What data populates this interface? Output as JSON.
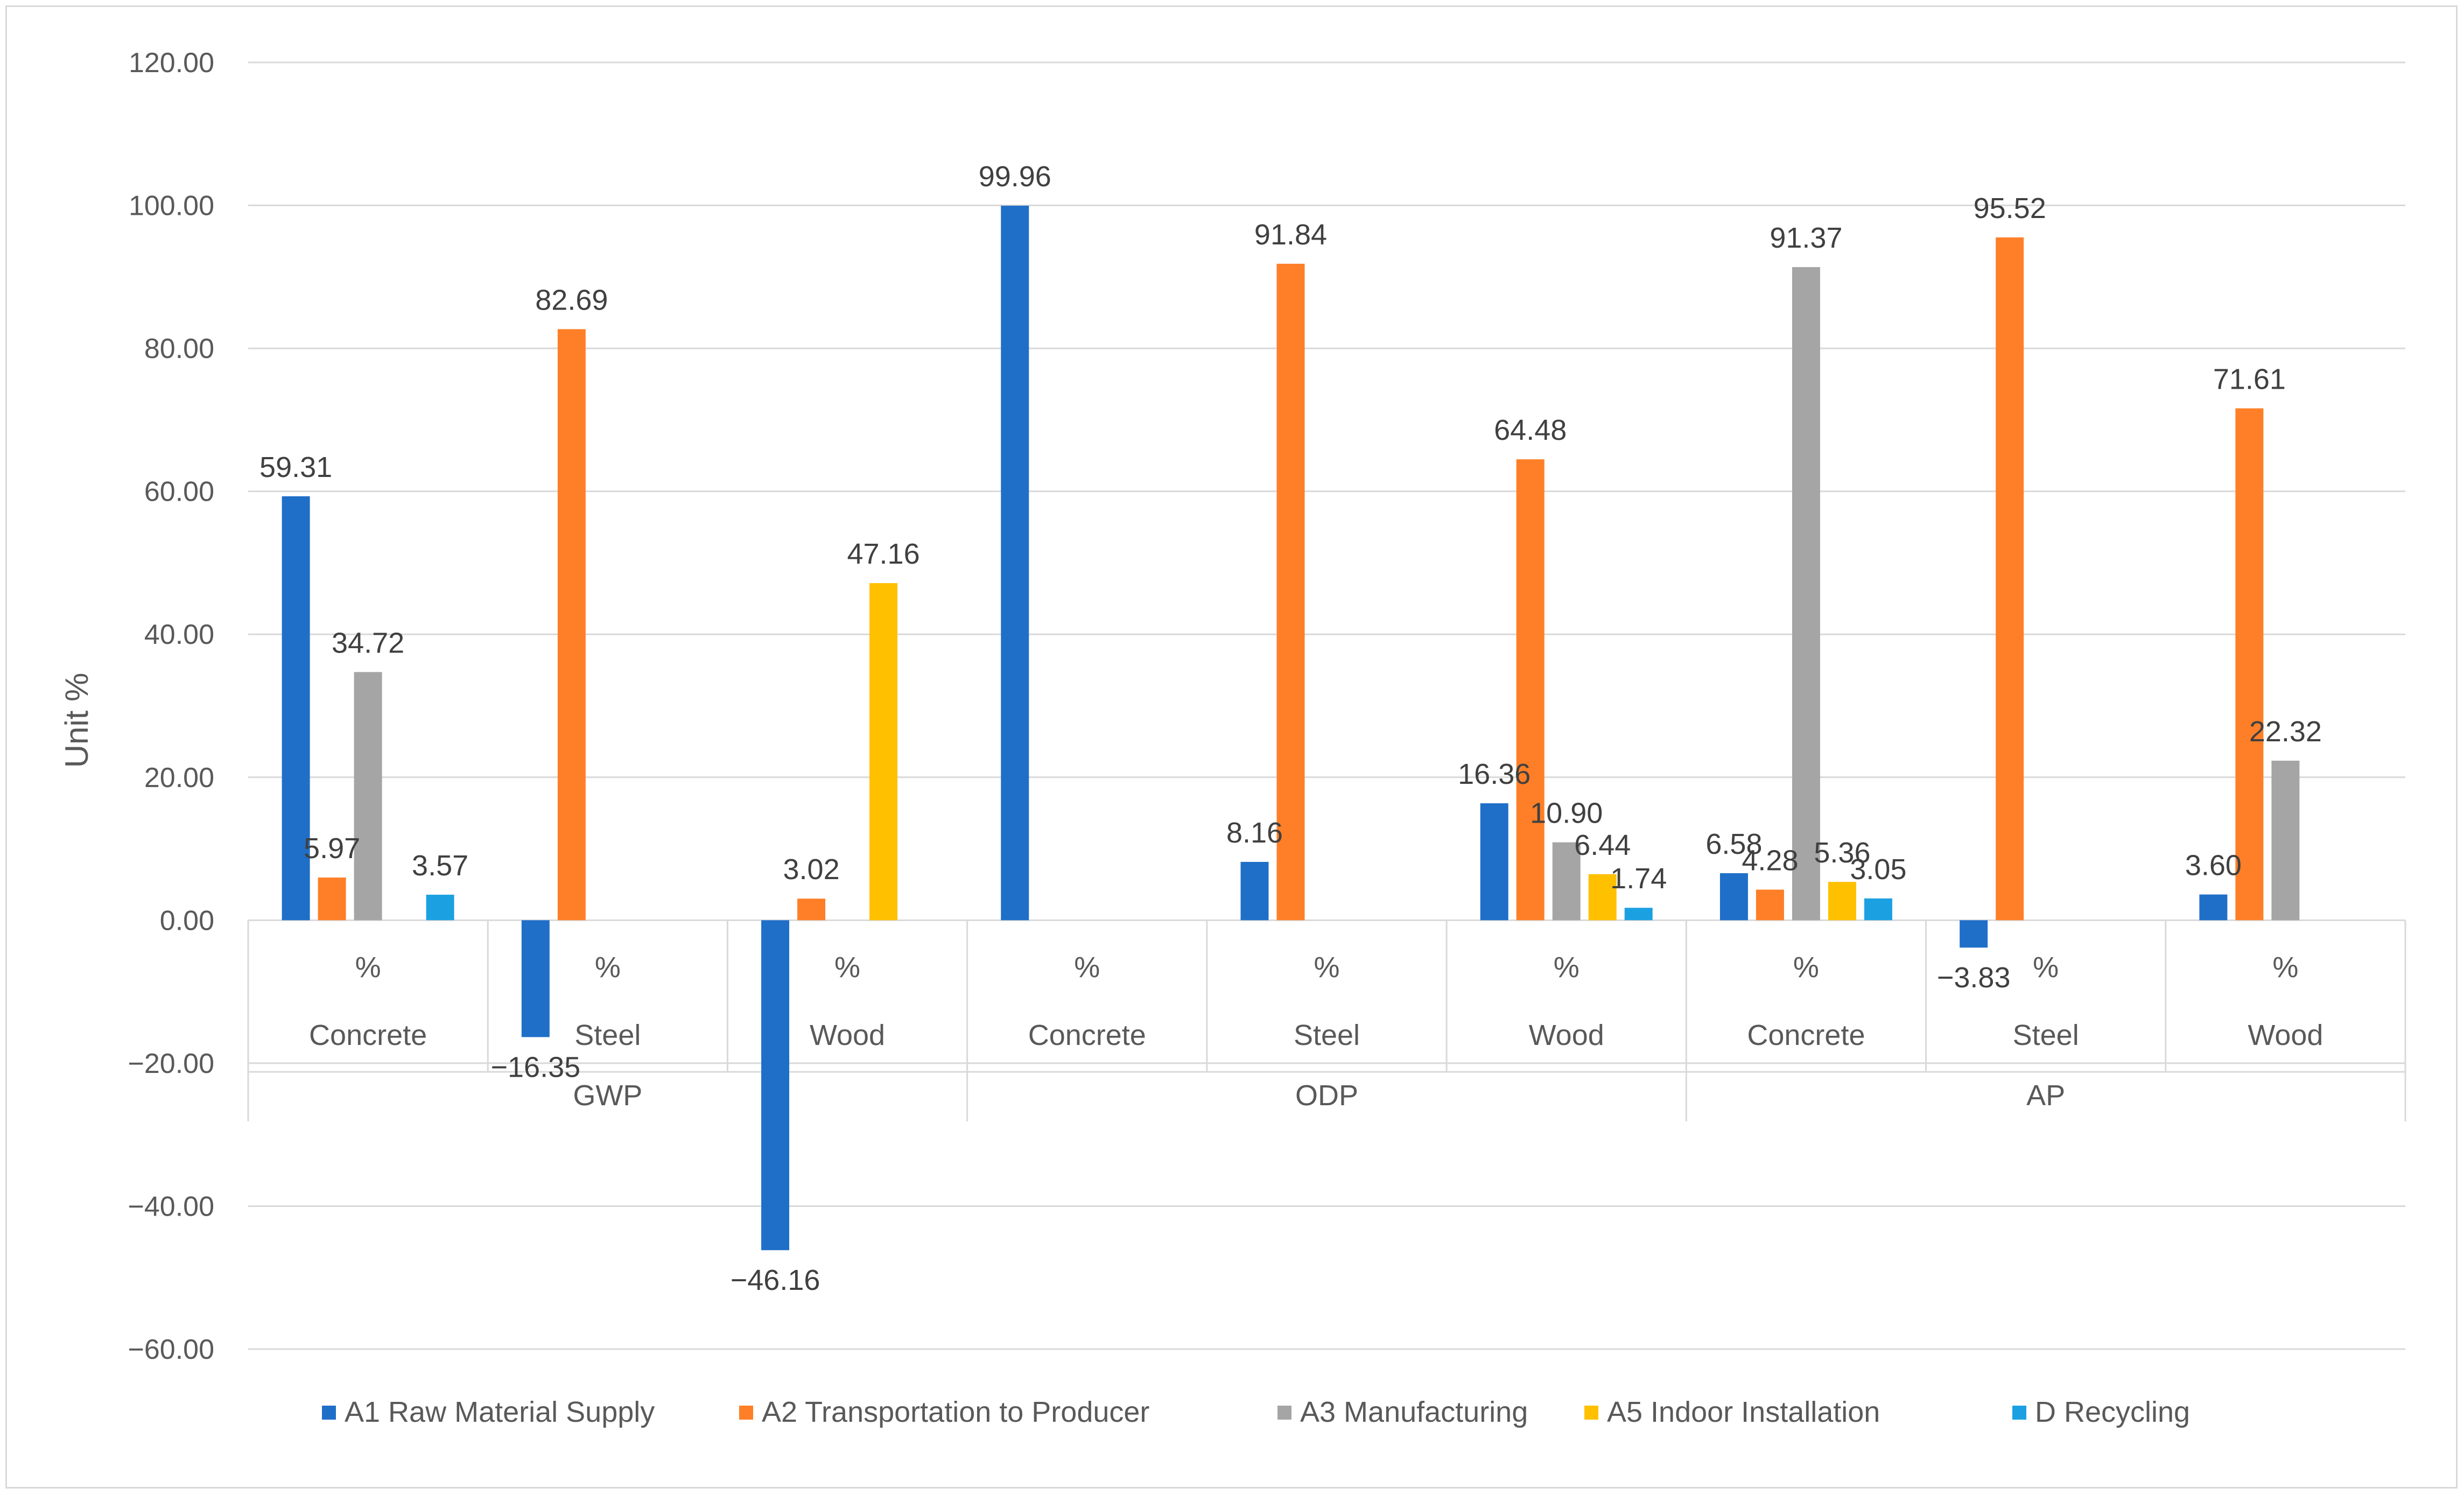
{
  "chart_data": {
    "type": "bar",
    "title": "",
    "xlabel": "",
    "ylabel": "Unit %",
    "ylim": [
      -60,
      120
    ],
    "y_ticks": [
      120,
      100,
      80,
      60,
      40,
      20,
      0,
      -20,
      -40,
      -60
    ],
    "y_tick_labels": [
      "120.00",
      "100.00",
      "80.00",
      "60.00",
      "40.00",
      "20.00",
      "0.00",
      "−20.00",
      "−40.00",
      "−60.00"
    ],
    "grid": true,
    "legend_position": "bottom",
    "group_levels": {
      "unit_labels": [
        "%",
        "%",
        "%",
        "%",
        "%",
        "%",
        "%",
        "%",
        "%"
      ],
      "materials": [
        "Concrete",
        "Steel",
        "Wood",
        "Concrete",
        "Steel",
        "Wood",
        "Concrete",
        "Steel",
        "Wood"
      ],
      "categories": [
        "GWP",
        "ODP",
        "AP"
      ]
    },
    "series": [
      {
        "name": "A1  Raw Material Supply",
        "color": "#1f6fc8",
        "values": [
          59.31,
          -16.35,
          -46.16,
          99.96,
          8.16,
          16.36,
          6.58,
          -3.83,
          3.6
        ],
        "labels": [
          "59.31",
          "−16.35",
          "−46.16",
          "99.96",
          "8.16",
          "16.36",
          "6.58",
          "−3.83",
          "3.60"
        ]
      },
      {
        "name": "A2 Transportation to Producer",
        "color": "#fe7f27",
        "values": [
          5.97,
          82.69,
          3.02,
          null,
          91.84,
          64.48,
          4.28,
          95.52,
          71.61
        ],
        "labels": [
          "5.97",
          "82.69",
          "3.02",
          "",
          "91.84",
          "64.48",
          "4.28",
          "95.52",
          "71.61"
        ]
      },
      {
        "name": "A3 Manufacturing",
        "color": "#a5a5a5",
        "values": [
          34.72,
          null,
          null,
          null,
          null,
          10.9,
          91.37,
          null,
          22.32
        ],
        "labels": [
          "34.72",
          "",
          "",
          "",
          "",
          "10.90",
          "91.37",
          "",
          "22.32"
        ]
      },
      {
        "name": "A5 Indoor Installation",
        "color": "#ffc000",
        "values": [
          null,
          null,
          47.16,
          null,
          null,
          6.44,
          5.36,
          null,
          null
        ],
        "labels": [
          "",
          "",
          "47.16",
          "",
          "",
          "6.44",
          "5.36",
          "",
          ""
        ]
      },
      {
        "name": "D Recycling",
        "color": "#1ba1e2",
        "values": [
          3.57,
          null,
          null,
          null,
          null,
          1.74,
          3.05,
          null,
          null
        ],
        "labels": [
          "3.57",
          "",
          "",
          "",
          "",
          "1.74",
          "3.05",
          "",
          ""
        ]
      }
    ]
  }
}
